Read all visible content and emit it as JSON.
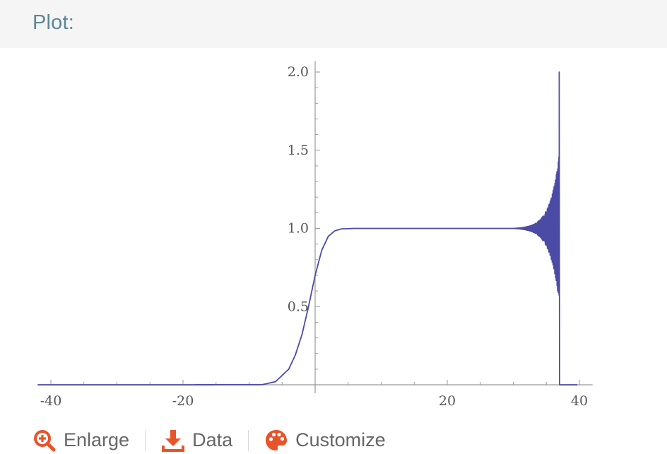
{
  "pod": {
    "title": "Plot:"
  },
  "toolbar": {
    "enlarge_label": "Enlarge",
    "data_label": "Data",
    "customize_label": "Customize",
    "accent_color": "#e8542a"
  },
  "chart_data": {
    "type": "line",
    "title": "",
    "xlabel": "",
    "ylabel": "",
    "xlim": [
      -42,
      42
    ],
    "ylim": [
      0,
      2.0
    ],
    "grid": false,
    "line_color": "#4b4ba6",
    "x_ticks": [
      -40,
      -20,
      20,
      40
    ],
    "x_tick_labels": [
      "-40",
      "-20",
      "20",
      "40"
    ],
    "y_ticks": [
      0.5,
      1.0,
      1.5,
      2.0
    ],
    "y_tick_labels": [
      "0.5",
      "1.0",
      "1.5",
      "2.0"
    ],
    "series": [
      {
        "x": [
          -42,
          -20,
          -8,
          -6,
          -4,
          -3,
          -2,
          -1,
          0,
          1,
          2,
          3,
          4,
          6,
          10,
          20,
          30,
          33,
          35,
          36,
          36.8,
          37,
          42
        ],
        "y": [
          0,
          0,
          0.001,
          0.02,
          0.1,
          0.19,
          0.32,
          0.5,
          0.7,
          0.86,
          0.95,
          0.985,
          0.997,
          1.0,
          1.0,
          1.0,
          1.0,
          1.0,
          1.0,
          1.0,
          1.0,
          0,
          0
        ]
      }
    ]
  }
}
